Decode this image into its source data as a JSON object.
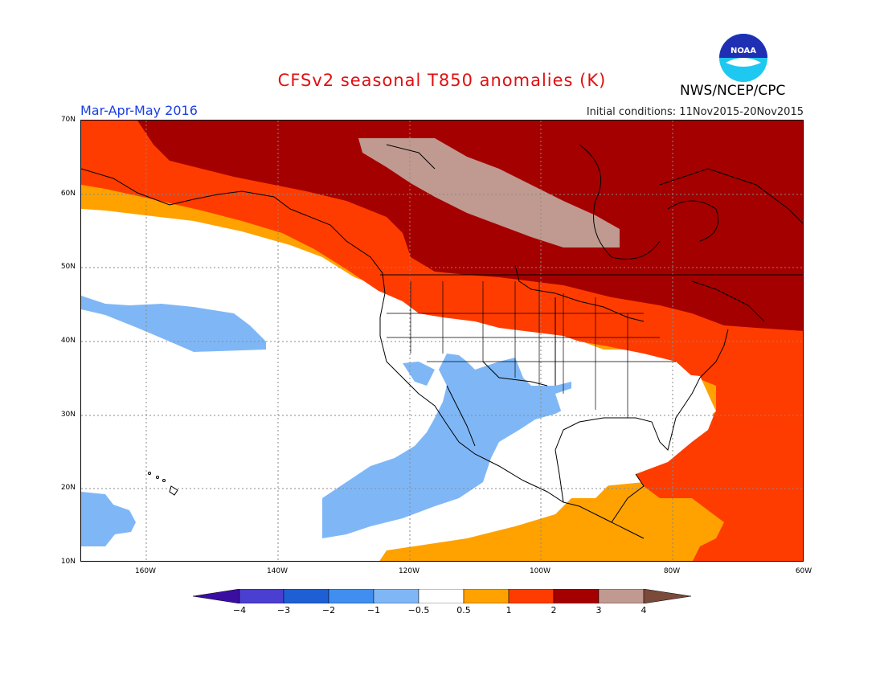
{
  "header": {
    "title": "CFSv2 seasonal T850 anomalies (K)",
    "title_color": "#e01010",
    "period": "Mar-Apr-May 2016",
    "period_color": "#1a3fe0",
    "initial_conditions": "Initial conditions: 11Nov2015-20Nov2015",
    "agency": "NWS/NCEP/CPC",
    "logo_text": "NOAA"
  },
  "axes": {
    "lat_labels": [
      "70N",
      "60N",
      "50N",
      "40N",
      "30N",
      "20N",
      "10N"
    ],
    "lon_labels": [
      "160W",
      "140W",
      "120W",
      "100W",
      "80W",
      "60W"
    ]
  },
  "colorbar": {
    "ticks": [
      "−4",
      "−3",
      "−2",
      "−1",
      "−0.5",
      "0.5",
      "1",
      "2",
      "3",
      "4"
    ],
    "colors": [
      "#3b0ea3",
      "#4a3fd0",
      "#1f5fd6",
      "#3f8ef0",
      "#7fb7f6",
      "#ffffff",
      "#ffa200",
      "#ff3c00",
      "#a50000",
      "#c09a90",
      "#7a4a3a"
    ]
  },
  "map_colors": {
    "warm_05": "#ffa200",
    "warm_1": "#ff3c00",
    "warm_2": "#a50000",
    "warm_3": "#c09a90",
    "cool_05": "#7fb7f6"
  }
}
